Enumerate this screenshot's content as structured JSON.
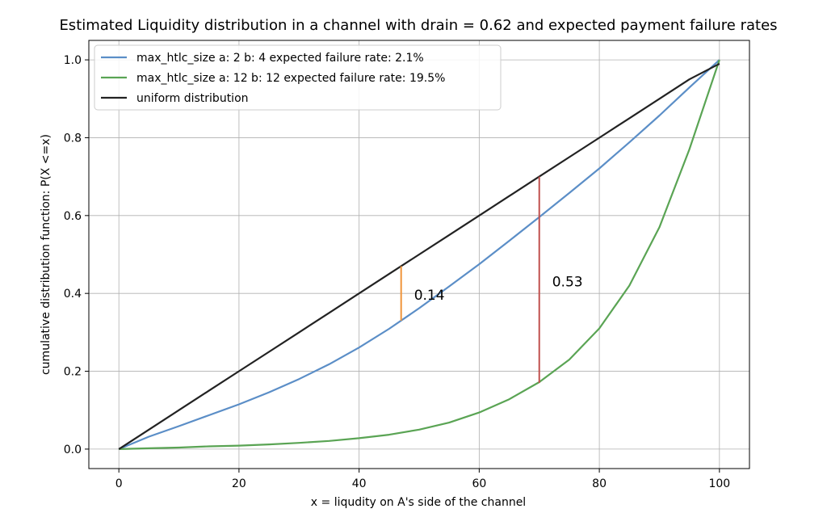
{
  "chart_data": {
    "type": "line",
    "title": "Estimated Liquidity distribution in a channel with drain = 0.62 and expected payment failure rates",
    "xlabel": "x = liqudity on A's side of the channel",
    "ylabel": "cumulative distribution function: P(X <=x)",
    "xlim": [
      -5,
      105
    ],
    "ylim": [
      -0.05,
      1.05
    ],
    "xticks": [
      0,
      20,
      40,
      60,
      80,
      100
    ],
    "yticks": [
      0.0,
      0.2,
      0.4,
      0.6,
      0.8,
      1.0
    ],
    "xtick_labels": [
      "0",
      "20",
      "40",
      "60",
      "80",
      "100"
    ],
    "ytick_labels": [
      "0.0",
      "0.2",
      "0.4",
      "0.6",
      "0.8",
      "1.0"
    ],
    "grid": true,
    "legend_position": "top-left",
    "x": [
      0,
      5,
      10,
      15,
      20,
      25,
      30,
      35,
      40,
      45,
      50,
      55,
      60,
      65,
      70,
      75,
      80,
      85,
      90,
      95,
      100
    ],
    "series": [
      {
        "name": "max_htlc_size a: 2 b: 4 expected failure rate: 2.1%",
        "color": "#5b8ec7",
        "y": [
          0.0,
          0.032,
          0.059,
          0.087,
          0.115,
          0.146,
          0.18,
          0.218,
          0.261,
          0.309,
          0.362,
          0.418,
          0.475,
          0.535,
          0.596,
          0.658,
          0.721,
          0.788,
          0.857,
          0.929,
          1.0
        ]
      },
      {
        "name": "max_htlc_size a: 12 b: 12 expected failure rate: 19.5%",
        "color": "#5aa454",
        "y": [
          0.0,
          0.002,
          0.004,
          0.007,
          0.009,
          0.012,
          0.016,
          0.021,
          0.028,
          0.037,
          0.05,
          0.068,
          0.094,
          0.128,
          0.172,
          0.23,
          0.31,
          0.42,
          0.57,
          0.77,
          1.0
        ]
      },
      {
        "name": "uniform distribution",
        "color": "#222222",
        "y": [
          0.0,
          0.05,
          0.1,
          0.15,
          0.2,
          0.25,
          0.3,
          0.35,
          0.4,
          0.45,
          0.5,
          0.55,
          0.6,
          0.65,
          0.7,
          0.75,
          0.8,
          0.85,
          0.9,
          0.95,
          0.99
        ]
      }
    ],
    "annotations": [
      {
        "x": 47,
        "y_from": 0.33,
        "y_to": 0.47,
        "label": "0.14",
        "color": "#f0943a"
      },
      {
        "x": 70,
        "y_from": 0.17,
        "y_to": 0.7,
        "label": "0.53",
        "color": "#c0504d"
      }
    ]
  }
}
